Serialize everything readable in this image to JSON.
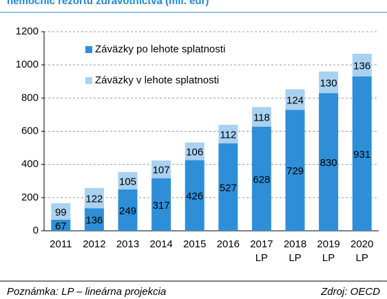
{
  "chart_data": {
    "type": "stacked_bar",
    "title": "nemocníc rezortu zdravotníctva (mil. eur)",
    "categories": [
      "2011",
      "2012",
      "2013",
      "2014",
      "2015",
      "2016",
      "2017\nLP",
      "2018\nLP",
      "2019\nLP",
      "2020\nLP"
    ],
    "series": [
      {
        "name": "Záväzky po lehote splatnosti",
        "color": "#2e8fd8",
        "values": [
          67,
          136,
          249,
          317,
          426,
          527,
          628,
          729,
          830,
          931
        ]
      },
      {
        "name": "Záväzky v lehote splatnosti",
        "color": "#a9d1f0",
        "values": [
          99,
          122,
          105,
          107,
          106,
          112,
          118,
          124,
          130,
          136
        ]
      }
    ],
    "ylim": [
      0,
      1200
    ],
    "yticks": [
      0,
      200,
      400,
      600,
      800,
      1000,
      1200
    ],
    "grid": true,
    "legend": "upper left",
    "note": "Poznámka: LP – lineárna projekcia",
    "source": "Zdroj: OECD"
  }
}
